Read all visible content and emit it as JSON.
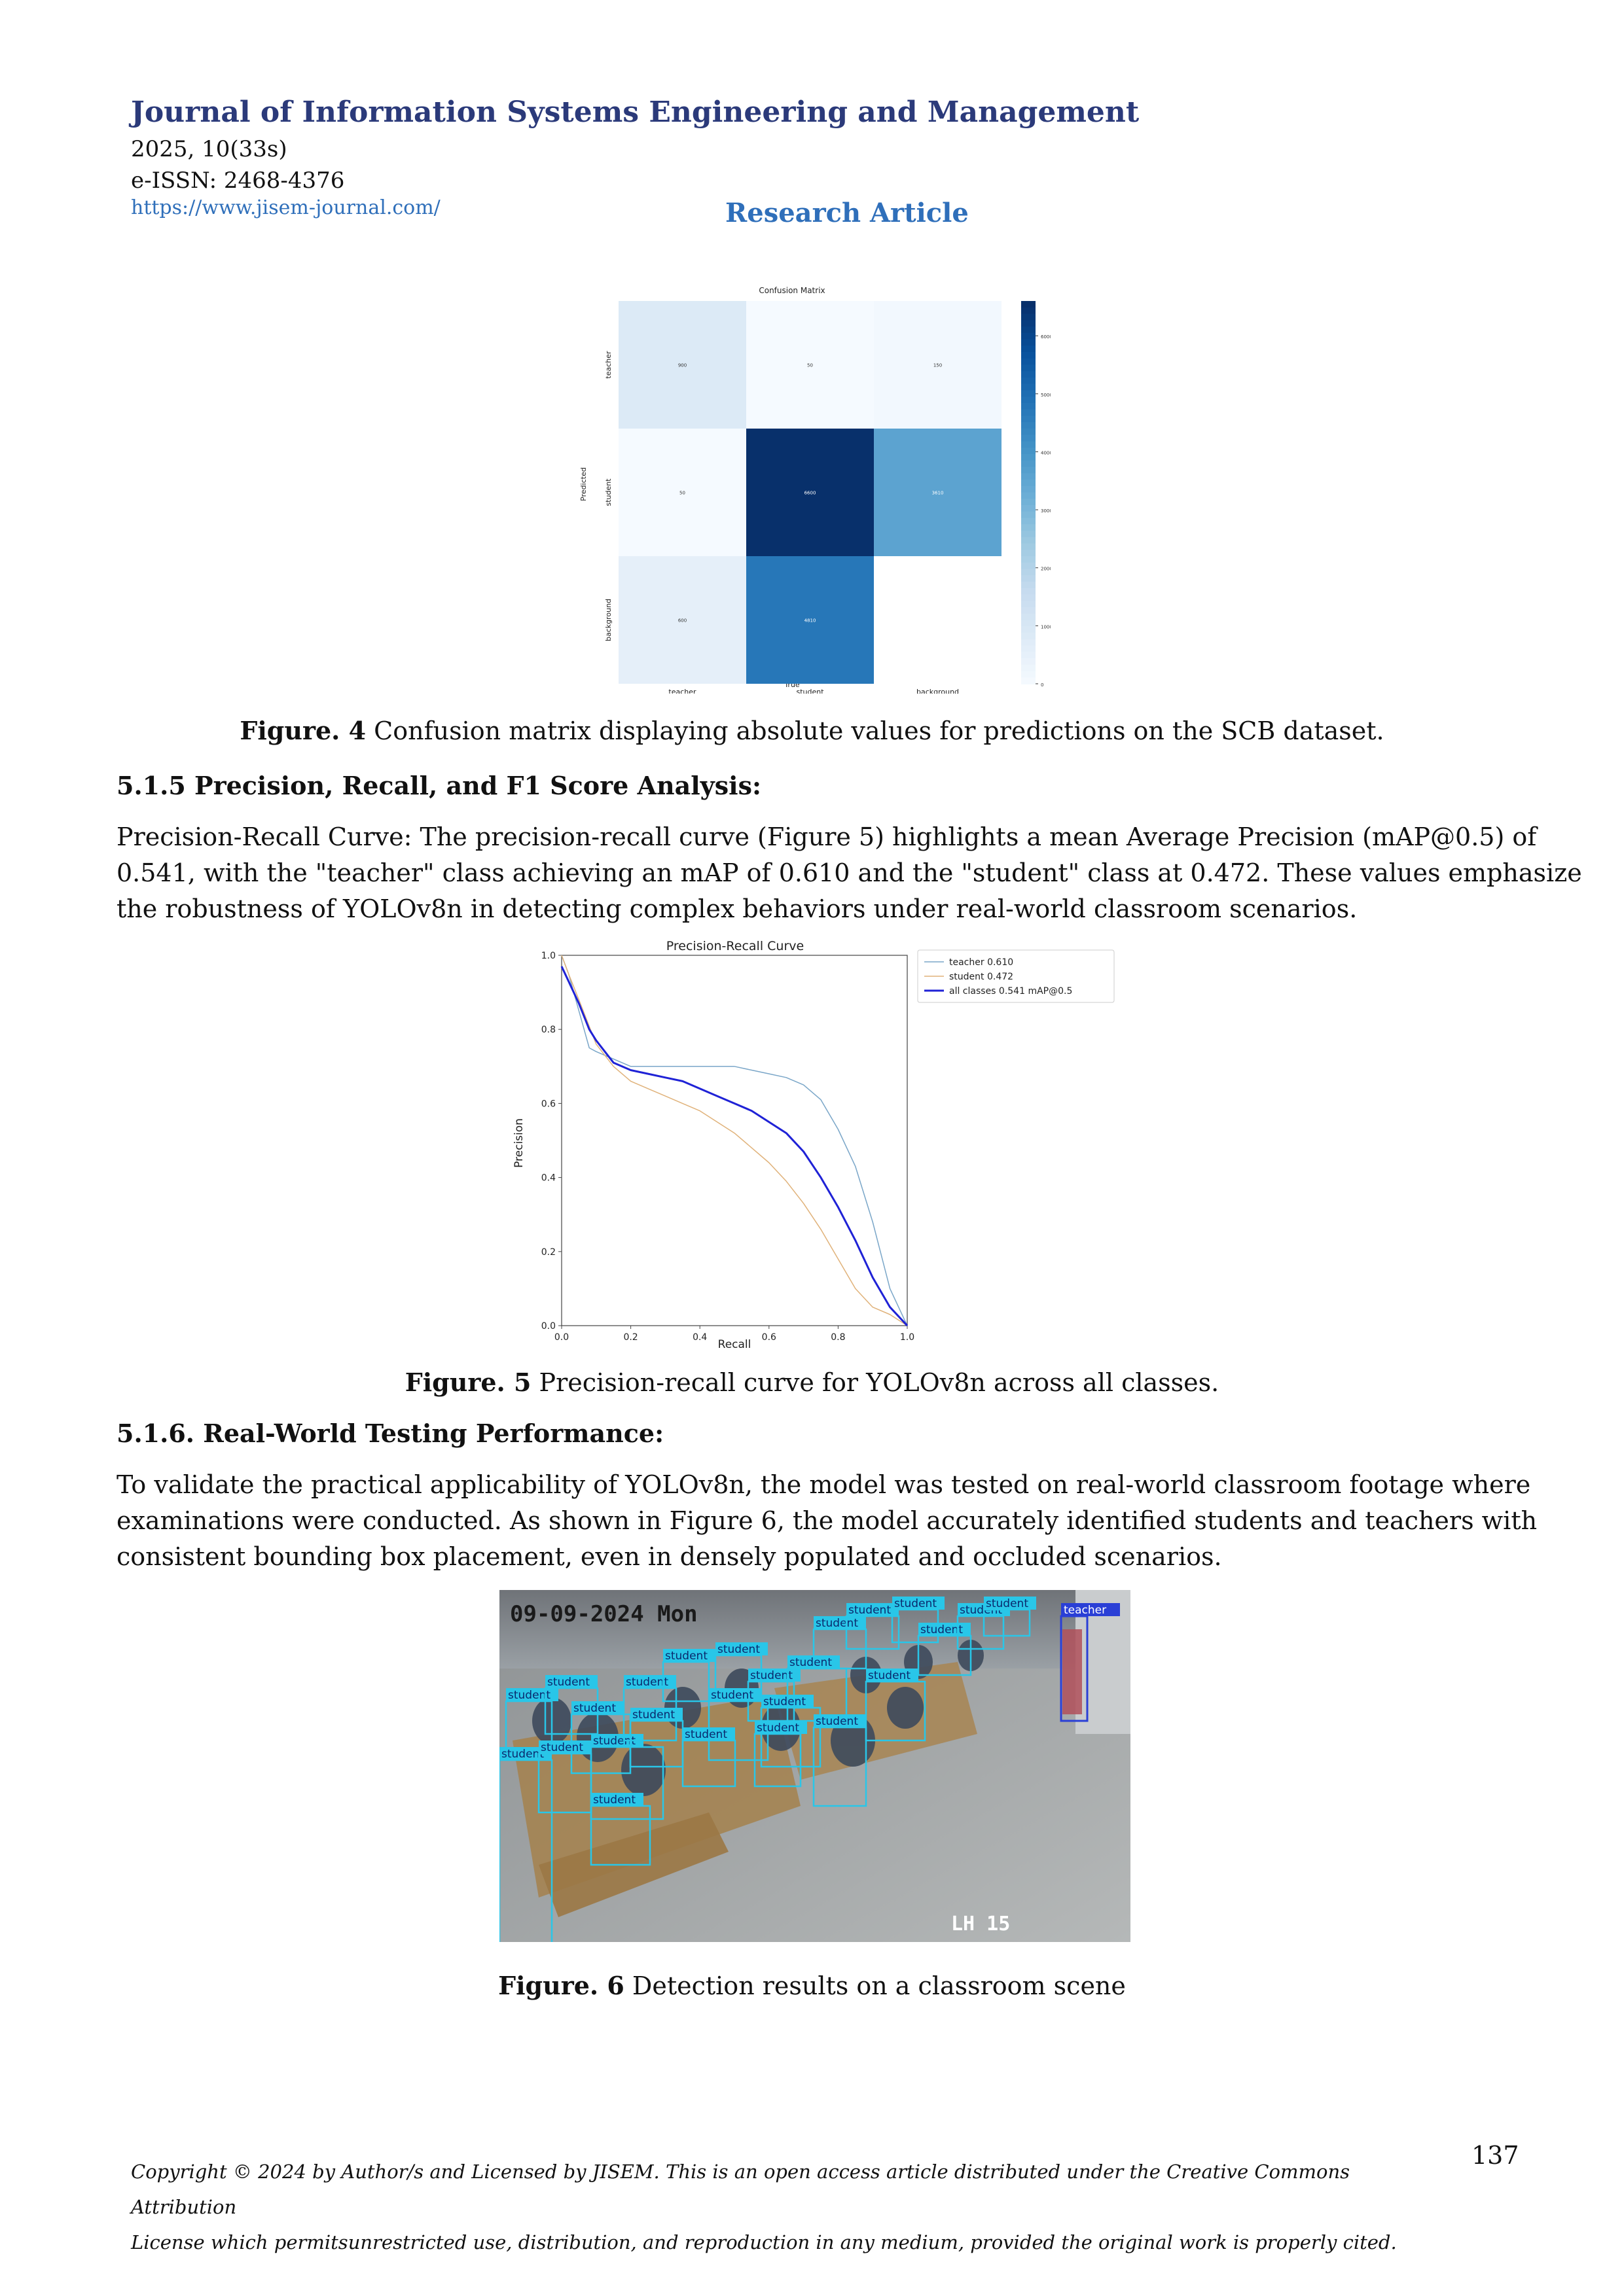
{
  "header": {
    "journal_title": "Journal of Information Systems Engineering and Management",
    "volume_issue": "2025, 10(33s)",
    "eissn": "e-ISSN: 2468-4376",
    "url": "https://www.jisem-journal.com/",
    "article_type": "Research Article"
  },
  "figure4": {
    "caption_label": "Figure. 4",
    "caption_text": " Confusion matrix displaying absolute values for predictions on the SCB dataset.",
    "chart_data": {
      "type": "heatmap",
      "title": "Confusion Matrix",
      "xlabel": "True",
      "ylabel": "Predicted",
      "x_categories": [
        "teacher",
        "student",
        "background"
      ],
      "y_categories": [
        "teacher",
        "student",
        "background"
      ],
      "values": [
        [
          900,
          50,
          150
        ],
        [
          50,
          6600,
          3610
        ],
        [
          600,
          4810,
          0
        ]
      ],
      "cell_labels": [
        [
          "900",
          "50",
          "150"
        ],
        [
          "50",
          "6600",
          "3610"
        ],
        [
          "600",
          "4810",
          ""
        ]
      ],
      "colorbar_ticks": [
        "6000",
        "5000",
        "4000",
        "3000",
        "2000",
        "1000",
        "0"
      ],
      "colorbar_range": [
        0,
        6600
      ],
      "colormap": [
        "#f7fbff",
        "#08306b"
      ]
    }
  },
  "section_515": {
    "heading": "5.1.5 Precision, Recall, and F1 Score Analysis:",
    "lines": [
      "Precision-Recall Curve: The precision-recall curve (Figure 5) highlights a mean Average Precision (mAP@0.5) of",
      "0.541, with the \"teacher\" class achieving an mAP of 0.610 and the \"student\" class at 0.472. These values emphasize",
      "the robustness of YOLOv8n in detecting complex behaviors under real-world classroom scenarios."
    ]
  },
  "figure5": {
    "caption_label": "Figure. 5",
    "caption_text": " Precision-recall curve for YOLOv8n across all classes.",
    "chart_data": {
      "type": "line",
      "title": "Precision-Recall Curve",
      "xlabel": "Recall",
      "ylabel": "Precision",
      "xlim": [
        0,
        1
      ],
      "ylim": [
        0,
        1
      ],
      "x_ticks": [
        "0.0",
        "0.2",
        "0.4",
        "0.6",
        "0.8",
        "1.0"
      ],
      "y_ticks": [
        "0.0",
        "0.2",
        "0.4",
        "0.6",
        "0.8",
        "1.0"
      ],
      "legend_position": "outside-right",
      "series": [
        {
          "name": "teacher 0.610",
          "color": "#7aa6c8",
          "width": 1.5,
          "x": [
            0.0,
            0.02,
            0.05,
            0.08,
            0.1,
            0.15,
            0.2,
            0.25,
            0.3,
            0.4,
            0.5,
            0.55,
            0.6,
            0.65,
            0.7,
            0.75,
            0.8,
            0.85,
            0.9,
            0.95,
            1.0
          ],
          "y": [
            1.0,
            0.95,
            0.85,
            0.75,
            0.74,
            0.72,
            0.7,
            0.7,
            0.7,
            0.7,
            0.7,
            0.69,
            0.68,
            0.67,
            0.65,
            0.61,
            0.53,
            0.43,
            0.28,
            0.1,
            0.0
          ]
        },
        {
          "name": "student 0.472",
          "color": "#e0b27a",
          "width": 1.5,
          "x": [
            0.0,
            0.02,
            0.05,
            0.1,
            0.15,
            0.2,
            0.25,
            0.3,
            0.35,
            0.4,
            0.45,
            0.5,
            0.55,
            0.6,
            0.65,
            0.7,
            0.75,
            0.8,
            0.85,
            0.9,
            0.95,
            1.0
          ],
          "y": [
            1.0,
            0.95,
            0.88,
            0.76,
            0.7,
            0.66,
            0.64,
            0.62,
            0.6,
            0.58,
            0.55,
            0.52,
            0.48,
            0.44,
            0.39,
            0.33,
            0.26,
            0.18,
            0.1,
            0.05,
            0.03,
            0.0
          ]
        },
        {
          "name": "all classes 0.541 mAP@0.5",
          "color": "#1f22d6",
          "width": 3,
          "x": [
            0.0,
            0.02,
            0.05,
            0.08,
            0.1,
            0.15,
            0.2,
            0.25,
            0.3,
            0.35,
            0.4,
            0.45,
            0.5,
            0.55,
            0.6,
            0.65,
            0.7,
            0.75,
            0.8,
            0.85,
            0.9,
            0.95,
            1.0
          ],
          "y": [
            0.97,
            0.93,
            0.87,
            0.8,
            0.77,
            0.71,
            0.69,
            0.68,
            0.67,
            0.66,
            0.64,
            0.62,
            0.6,
            0.58,
            0.55,
            0.52,
            0.47,
            0.4,
            0.32,
            0.23,
            0.13,
            0.05,
            0.0
          ]
        }
      ]
    }
  },
  "section_516": {
    "heading": "5.1.6. Real-World Testing Performance:",
    "lines": [
      "To validate the practical applicability of YOLOv8n, the model was tested on real-world classroom footage where",
      "examinations were conducted. As shown in Figure 6, the model accurately identified students and teachers with",
      "consistent bounding box placement, even in densely populated and occluded scenarios."
    ]
  },
  "figure6": {
    "caption_label": "Figure. 6",
    "caption_text": " Detection results on a classroom scene",
    "timestamp": "09-09-2024  Mon",
    "room_label": "LH  15",
    "labels": {
      "student": "student",
      "teacher": "teacher"
    },
    "box_color": "#29c6e8",
    "teacher_box_color": "#2a3fd6"
  },
  "footer": {
    "copyright_line1": "Copyright © 2024 by Author/s and Licensed by JISEM. This is an open access article distributed under the Creative Commons Attribution",
    "copyright_line2": "License which permitsunrestricted use, distribution, and reproduction in any medium, provided the original work is properly cited.",
    "page_number": "137"
  }
}
